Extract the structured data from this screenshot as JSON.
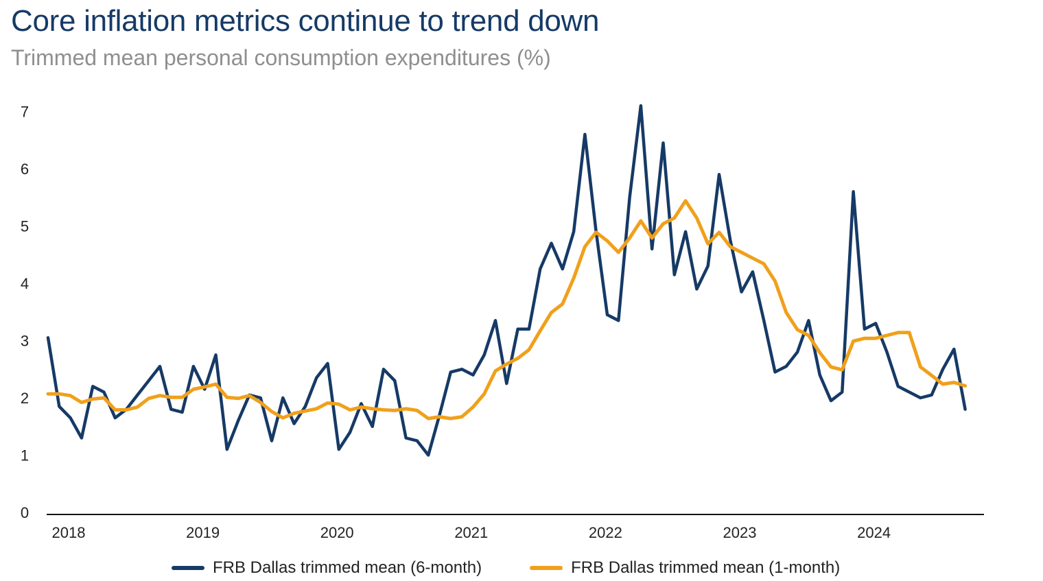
{
  "title": "Core inflation metrics continue to trend down",
  "subtitle": "Trimmed mean personal consumption expenditures (%)",
  "colors": {
    "series_6m": "#163a66",
    "series_1m": "#f0a01c",
    "axis": "#111111"
  },
  "chart_data": {
    "type": "line",
    "title": "Core inflation metrics continue to trend down",
    "subtitle": "Trimmed mean personal consumption expenditures (%)",
    "xlabel": "",
    "ylabel": "",
    "ylim": [
      0,
      7
    ],
    "yticks": [
      "0",
      "1",
      "2",
      "3",
      "4",
      "5",
      "6",
      "7"
    ],
    "xticks": [
      "2018",
      "2019",
      "2020",
      "2021",
      "2022",
      "2023",
      "2024"
    ],
    "x_start": "2018-01",
    "frequency": "monthly",
    "grid": false,
    "legend_position": "bottom",
    "series": [
      {
        "name": "FRB Dallas trimmed mean (6-month)",
        "color": "#163a66",
        "values": [
          3.05,
          1.85,
          1.65,
          1.3,
          2.2,
          2.1,
          1.65,
          1.8,
          2.05,
          2.3,
          2.55,
          1.8,
          1.75,
          2.55,
          2.15,
          2.75,
          1.1,
          1.6,
          2.05,
          2.0,
          1.25,
          2.0,
          1.55,
          1.85,
          2.35,
          2.6,
          1.1,
          1.4,
          1.9,
          1.5,
          2.5,
          2.3,
          1.3,
          1.25,
          1.0,
          1.7,
          2.45,
          2.5,
          2.4,
          2.75,
          3.35,
          2.25,
          3.2,
          3.2,
          4.25,
          4.7,
          4.25,
          4.9,
          6.6,
          4.9,
          3.45,
          3.35,
          5.5,
          7.1,
          4.6,
          6.45,
          4.15,
          4.9,
          3.9,
          4.3,
          5.9,
          4.75,
          3.85,
          4.2,
          3.35,
          2.45,
          2.55,
          2.8,
          3.35,
          2.4,
          1.95,
          2.1,
          5.6,
          3.2,
          3.3,
          2.8,
          2.2,
          2.1,
          2.0,
          2.05,
          2.5,
          2.85,
          1.8
        ]
      },
      {
        "name": "FRB Dallas trimmed mean (1-month)",
        "color": "#f0a01c",
        "values": [
          2.07,
          2.07,
          2.04,
          1.92,
          1.98,
          2.0,
          1.79,
          1.79,
          1.84,
          1.99,
          2.04,
          2.01,
          2.01,
          2.15,
          2.19,
          2.24,
          2.01,
          1.99,
          2.04,
          1.92,
          1.76,
          1.65,
          1.73,
          1.77,
          1.81,
          1.91,
          1.89,
          1.79,
          1.84,
          1.81,
          1.79,
          1.78,
          1.81,
          1.78,
          1.64,
          1.67,
          1.64,
          1.67,
          1.84,
          2.07,
          2.47,
          2.59,
          2.69,
          2.84,
          3.17,
          3.49,
          3.64,
          4.09,
          4.64,
          4.89,
          4.74,
          4.54,
          4.79,
          5.09,
          4.79,
          5.04,
          5.14,
          5.44,
          5.14,
          4.69,
          4.89,
          4.64,
          4.54,
          4.44,
          4.34,
          4.04,
          3.49,
          3.19,
          3.09,
          2.79,
          2.54,
          2.49,
          2.99,
          3.04,
          3.04,
          3.09,
          3.14,
          3.14,
          2.54,
          2.39,
          2.24,
          2.27,
          2.21
        ]
      }
    ]
  }
}
